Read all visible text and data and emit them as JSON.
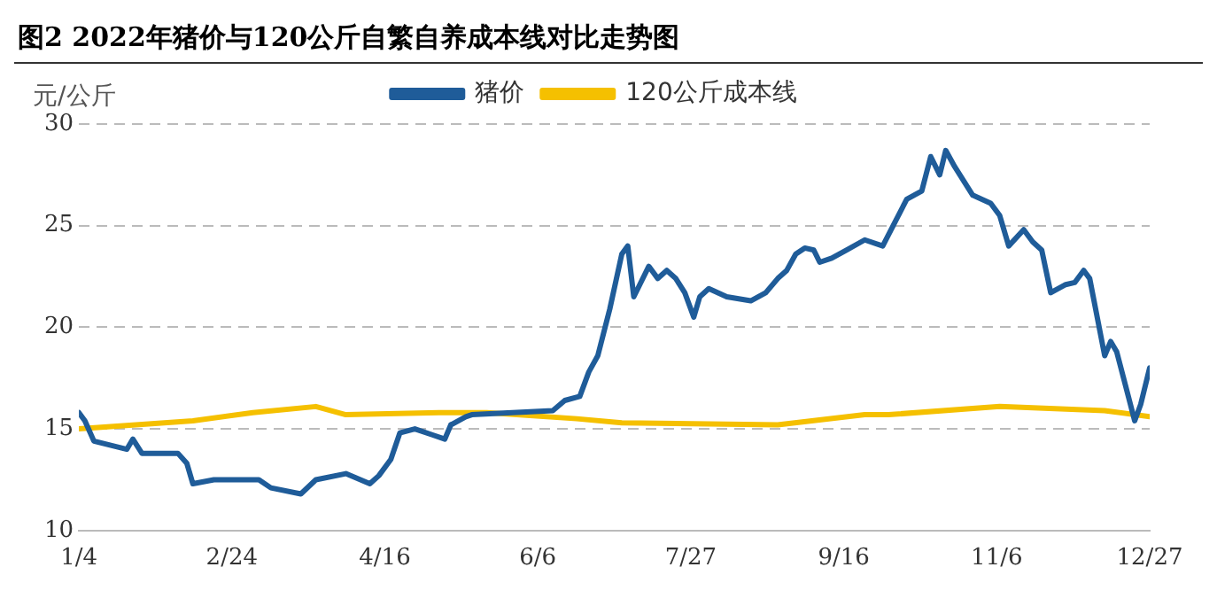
{
  "chart_data": {
    "type": "line",
    "title": "图2 2022年猪价与120公斤自繁自养成本线对比走势图",
    "ylabel": "元/公斤",
    "xlim": [
      "--01-04",
      "--12-27"
    ],
    "xticks": [
      {
        "value": "--01-04",
        "label": "1/4"
      },
      {
        "value": "--02-24",
        "label": "2/24"
      },
      {
        "value": "--04-16",
        "label": "4/16"
      },
      {
        "value": "--06-06",
        "label": "6/6"
      },
      {
        "value": "--07-27",
        "label": "7/27"
      },
      {
        "value": "--09-16",
        "label": "9/16"
      },
      {
        "value": "--11-06",
        "label": "11/6"
      },
      {
        "value": "--12-27",
        "label": "12/27"
      }
    ],
    "ylim": [
      10,
      30
    ],
    "yticks": [
      10,
      15,
      20,
      25,
      30
    ],
    "grid": "y",
    "legend": "top",
    "marker": "none",
    "line_style": "solid",
    "series": [
      {
        "name": "猪价",
        "color": "#1f5c99",
        "x": [
          "--01-04",
          "--01-06",
          "--01-09",
          "--01-20",
          "--01-22",
          "--01-25",
          "--02-06",
          "--02-09",
          "--02-11",
          "--02-18",
          "--03-05",
          "--03-09",
          "--03-19",
          "--03-24",
          "--04-03",
          "--04-11",
          "--04-14",
          "--04-18",
          "--04-21",
          "--04-26",
          "--05-02",
          "--05-06",
          "--05-08",
          "--05-13",
          "--05-15",
          "--06-11",
          "--06-15",
          "--06-20",
          "--06-23",
          "--06-26",
          "--06-30",
          "--07-04",
          "--07-06",
          "--07-08",
          "--07-10",
          "--07-13",
          "--07-16",
          "--07-19",
          "--07-22",
          "--07-25",
          "--07-28",
          "--07-30",
          "--08-02",
          "--08-08",
          "--08-16",
          "--08-21",
          "--08-25",
          "--08-28",
          "--08-31",
          "--09-03",
          "--09-06",
          "--09-08",
          "--09-12",
          "--09-17",
          "--09-23",
          "--09-29",
          "--10-07",
          "--10-12",
          "--10-15",
          "--10-18",
          "--10-20",
          "--10-23",
          "--10-29",
          "--11-04",
          "--11-07",
          "--11-10",
          "--11-15",
          "--11-18",
          "--11-21",
          "--11-24",
          "--11-29",
          "--12-02",
          "--12-05",
          "--12-07",
          "--12-12",
          "--12-14",
          "--12-16",
          "--12-22",
          "--12-24",
          "--12-27"
        ],
        "values": [
          15.8,
          15.4,
          14.4,
          14.0,
          14.5,
          13.8,
          13.8,
          13.3,
          12.3,
          12.5,
          12.5,
          12.1,
          11.8,
          12.5,
          12.8,
          12.3,
          12.7,
          13.5,
          14.8,
          15.0,
          14.7,
          14.5,
          15.2,
          15.6,
          15.7,
          15.9,
          16.4,
          16.6,
          17.8,
          18.6,
          20.9,
          23.6,
          24.0,
          21.5,
          22.1,
          23.0,
          22.4,
          22.8,
          22.4,
          21.7,
          20.5,
          21.5,
          21.9,
          21.5,
          21.3,
          21.7,
          22.4,
          22.8,
          23.6,
          23.9,
          23.8,
          23.2,
          23.4,
          23.8,
          24.3,
          24.0,
          26.3,
          26.7,
          28.4,
          27.5,
          28.7,
          27.9,
          26.5,
          26.1,
          25.5,
          24.0,
          24.8,
          24.2,
          23.8,
          21.7,
          22.1,
          22.2,
          22.8,
          22.4,
          18.6,
          19.3,
          18.8,
          15.4,
          16.2,
          18.0
        ]
      },
      {
        "name": "120公斤成本线",
        "color": "#f5c000",
        "x": [
          "--01-04",
          "--02-11",
          "--03-03",
          "--03-24",
          "--04-03",
          "--05-04",
          "--05-20",
          "--06-19",
          "--07-04",
          "--08-25",
          "--09-23",
          "--10-01",
          "--11-07",
          "--12-12",
          "--12-27"
        ],
        "values": [
          15.0,
          15.4,
          15.8,
          16.1,
          15.7,
          15.8,
          15.8,
          15.5,
          15.3,
          15.2,
          15.7,
          15.7,
          16.1,
          15.9,
          15.6
        ]
      }
    ]
  }
}
